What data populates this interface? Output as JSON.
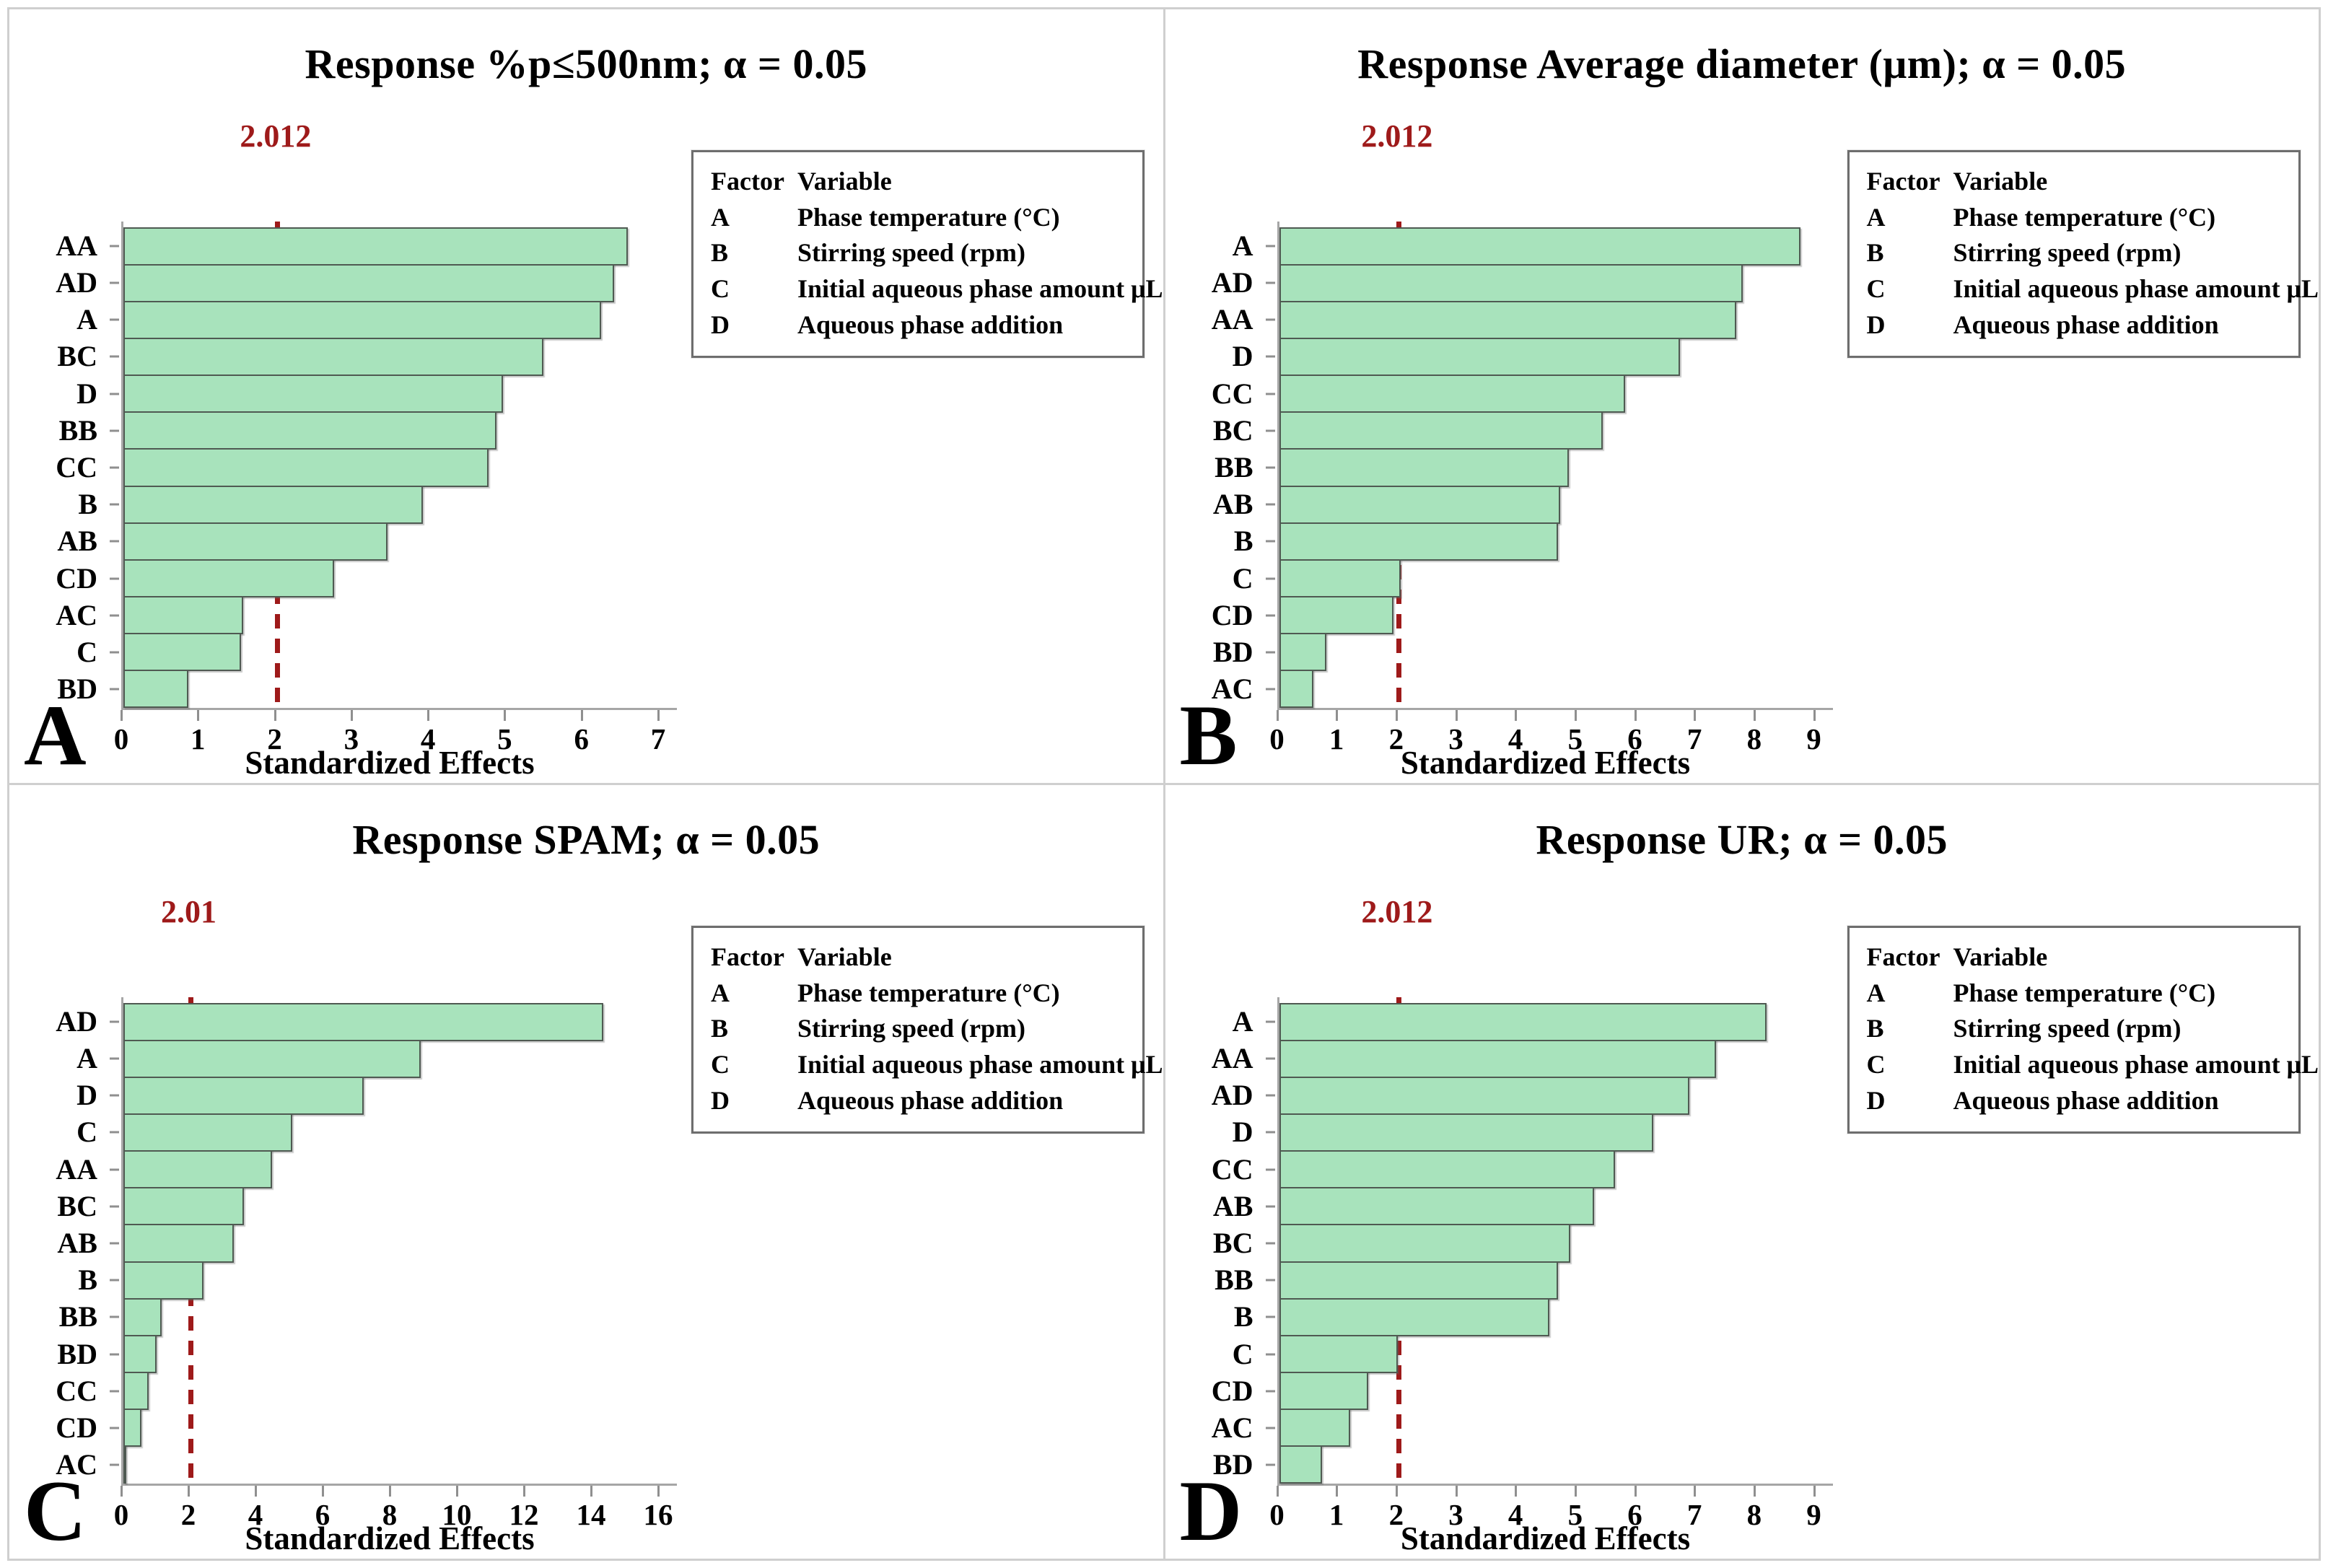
{
  "figure": {
    "colors": {
      "bar_fill": "#a8e3bc",
      "bar_border": "#4f5a52",
      "reference_line": "#9e1a1a",
      "axis": "#a6a6a6",
      "frame": "#cfcfcf"
    },
    "legend": {
      "header": [
        "Factor",
        "Variable"
      ],
      "rows": [
        [
          "A",
          "Phase temperature (°C)"
        ],
        [
          "B",
          "Stirring speed (rpm)"
        ],
        [
          "C",
          "Initial aqueous phase amount μL"
        ],
        [
          "D",
          "Aqueous phase addition"
        ]
      ]
    },
    "panels": [
      {
        "letter": "A"
      },
      {
        "letter": "B"
      },
      {
        "letter": "C"
      },
      {
        "letter": "D"
      }
    ]
  },
  "chart_data": [
    {
      "type": "bar",
      "title": "Response %p≤500nm; α = 0.05",
      "xlabel": "Standardized Effects",
      "categories": [
        "AA",
        "AD",
        "A",
        "BC",
        "D",
        "BB",
        "CC",
        "B",
        "AB",
        "CD",
        "AC",
        "C",
        "BD"
      ],
      "values": [
        6.6,
        6.42,
        6.25,
        5.5,
        4.97,
        4.88,
        4.78,
        3.92,
        3.46,
        2.76,
        1.57,
        1.54,
        0.85
      ],
      "xlim": [
        0,
        7
      ],
      "xticks": [
        0,
        1,
        2,
        3,
        4,
        5,
        6,
        7
      ],
      "ref_line": {
        "label": "2.012",
        "value": 2.012
      },
      "orientation": "horizontal",
      "grid": false,
      "legend_position": "upper right"
    },
    {
      "type": "bar",
      "title": "Response Average diameter (μm); α = 0.05",
      "xlabel": "Standardized Effects",
      "categories": [
        "A",
        "AD",
        "AA",
        "D",
        "CC",
        "BC",
        "BB",
        "AB",
        "B",
        "C",
        "CD",
        "BD",
        "AC"
      ],
      "values": [
        8.78,
        7.8,
        7.7,
        6.75,
        5.82,
        5.45,
        4.88,
        4.73,
        4.7,
        2.05,
        1.93,
        0.8,
        0.58
      ],
      "xlim": [
        0,
        9
      ],
      "xticks": [
        0,
        1,
        2,
        3,
        4,
        5,
        6,
        7,
        8,
        9
      ],
      "ref_line": {
        "label": "2.012",
        "value": 2.012
      },
      "orientation": "horizontal",
      "grid": false,
      "legend_position": "upper right"
    },
    {
      "type": "bar",
      "title": "Response SPAM; α = 0.05",
      "xlabel": "Standardized Effects",
      "categories": [
        "AD",
        "A",
        "D",
        "C",
        "AA",
        "BC",
        "AB",
        "B",
        "BB",
        "BD",
        "CC",
        "CD",
        "AC"
      ],
      "values": [
        14.35,
        8.9,
        7.2,
        5.05,
        4.45,
        3.6,
        3.3,
        2.4,
        1.15,
        1.0,
        0.76,
        0.55,
        0.07
      ],
      "xlim": [
        0,
        16
      ],
      "xticks": [
        0,
        2,
        4,
        6,
        8,
        10,
        12,
        14,
        16
      ],
      "ref_line": {
        "label": "2.01",
        "value": 2.01
      },
      "orientation": "horizontal",
      "grid": false,
      "legend_position": "upper right"
    },
    {
      "type": "bar",
      "title": "Response UR; α = 0.05",
      "xlabel": "Standardized Effects",
      "categories": [
        "A",
        "AA",
        "AD",
        "D",
        "CC",
        "AB",
        "BC",
        "BB",
        "B",
        "C",
        "CD",
        "AC",
        "BD"
      ],
      "values": [
        8.2,
        7.35,
        6.9,
        6.3,
        5.65,
        5.3,
        4.9,
        4.7,
        4.55,
        2.0,
        1.5,
        1.2,
        0.72
      ],
      "xlim": [
        0,
        9
      ],
      "xticks": [
        0,
        1,
        2,
        3,
        4,
        5,
        6,
        7,
        8,
        9
      ],
      "ref_line": {
        "label": "2.012",
        "value": 2.012
      },
      "orientation": "horizontal",
      "grid": false,
      "legend_position": "upper right"
    }
  ]
}
